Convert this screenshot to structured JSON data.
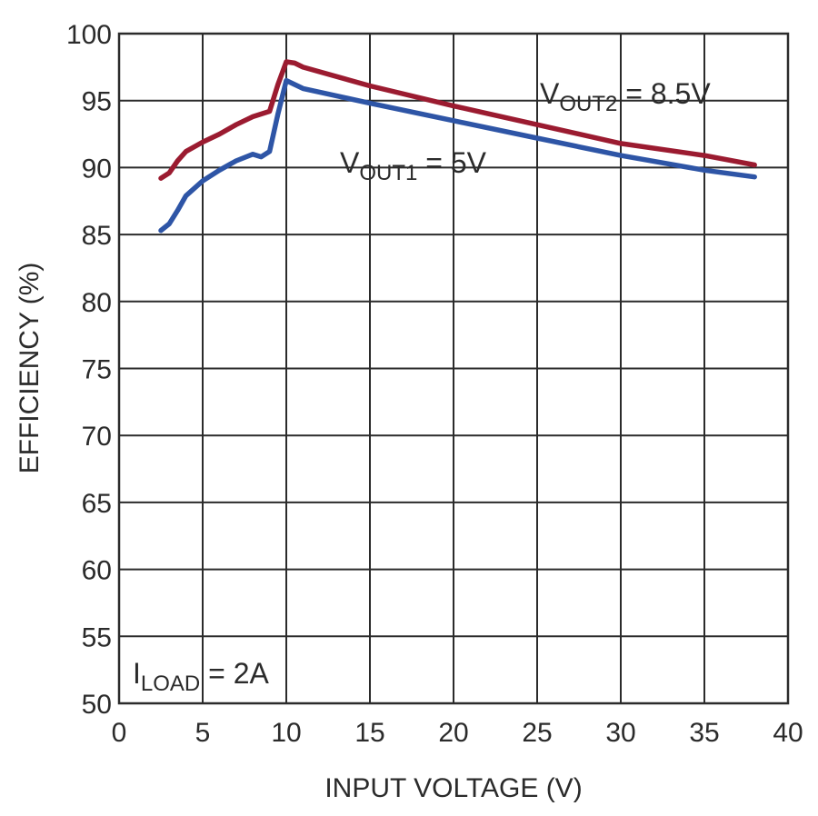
{
  "chart_data": {
    "type": "line",
    "xlabel": "INPUT VOLTAGE (V)",
    "ylabel": "EFFICIENCY (%)",
    "xlim": [
      0,
      40
    ],
    "ylim": [
      50,
      100
    ],
    "xticks": [
      "0",
      "5",
      "10",
      "15",
      "20",
      "25",
      "30",
      "35",
      "40"
    ],
    "yticks": [
      "50",
      "55",
      "60",
      "65",
      "70",
      "75",
      "80",
      "85",
      "90",
      "95",
      "100"
    ],
    "grid": true,
    "series": [
      {
        "name_parts": [
          "V",
          "OUT2",
          " = 8.5V"
        ],
        "color": "#9b1b30",
        "x": [
          2.5,
          3.0,
          3.5,
          4.0,
          5.0,
          6.0,
          7.0,
          8.0,
          9.0,
          9.5,
          10.0,
          10.5,
          11.0,
          15.0,
          20.0,
          25.0,
          30.0,
          35.0,
          38.0
        ],
        "y": [
          89.2,
          89.6,
          90.5,
          91.2,
          91.9,
          92.5,
          93.2,
          93.8,
          94.2,
          96.2,
          97.9,
          97.8,
          97.5,
          96.1,
          94.6,
          93.2,
          91.8,
          90.9,
          90.2
        ]
      },
      {
        "name_parts": [
          "V",
          "OUT1",
          " = 5V"
        ],
        "color": "#2e55a6",
        "x": [
          2.5,
          3.0,
          3.5,
          4.0,
          5.0,
          6.0,
          7.0,
          8.0,
          8.5,
          9.0,
          9.5,
          10.0,
          10.5,
          11.0,
          15.0,
          20.0,
          25.0,
          30.0,
          35.0,
          38.0
        ],
        "y": [
          85.3,
          85.8,
          86.8,
          87.9,
          89.0,
          89.8,
          90.5,
          91.0,
          90.8,
          91.2,
          94.0,
          96.5,
          96.2,
          95.9,
          94.8,
          93.5,
          92.2,
          90.9,
          89.8,
          89.3
        ]
      }
    ],
    "annotations": [
      {
        "parts": [
          "I",
          "LOAD",
          " = 2A"
        ]
      }
    ]
  }
}
